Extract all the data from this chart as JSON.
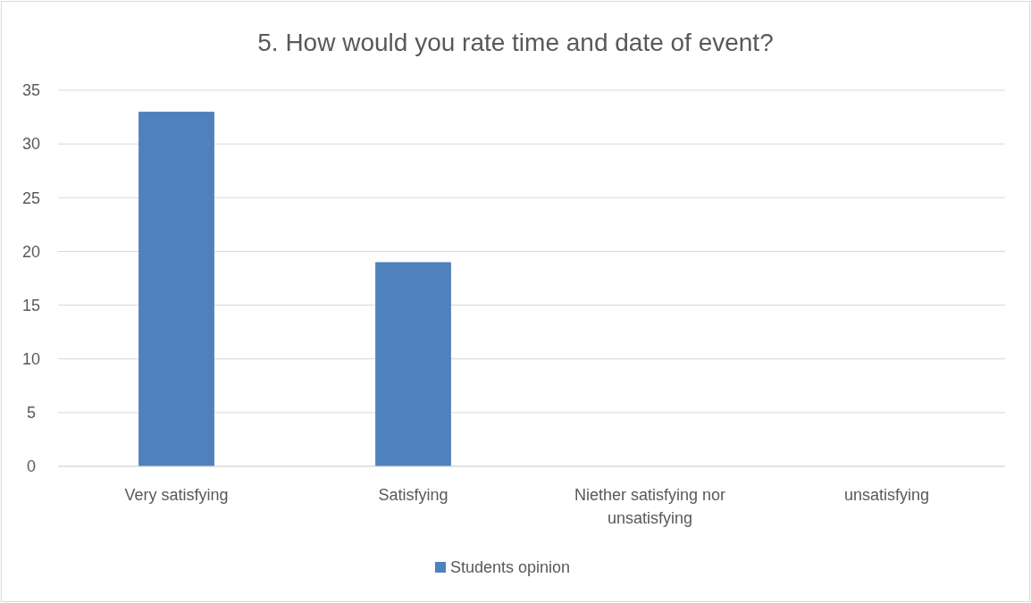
{
  "chart_data": {
    "type": "bar",
    "title": "5. How would you rate time and date of event?",
    "categories": [
      "Very satisfying",
      "Satisfying",
      "Niether satisfying nor unsatisfying",
      "unsatisfying"
    ],
    "series": [
      {
        "name": "Students opinion",
        "color": "#4f81bd",
        "values": [
          33,
          19,
          0,
          0
        ]
      }
    ],
    "ylim": [
      0,
      35
    ],
    "yticks": [
      0,
      5,
      10,
      15,
      20,
      25,
      30,
      35
    ],
    "grid": "y",
    "legend": "bottom"
  }
}
